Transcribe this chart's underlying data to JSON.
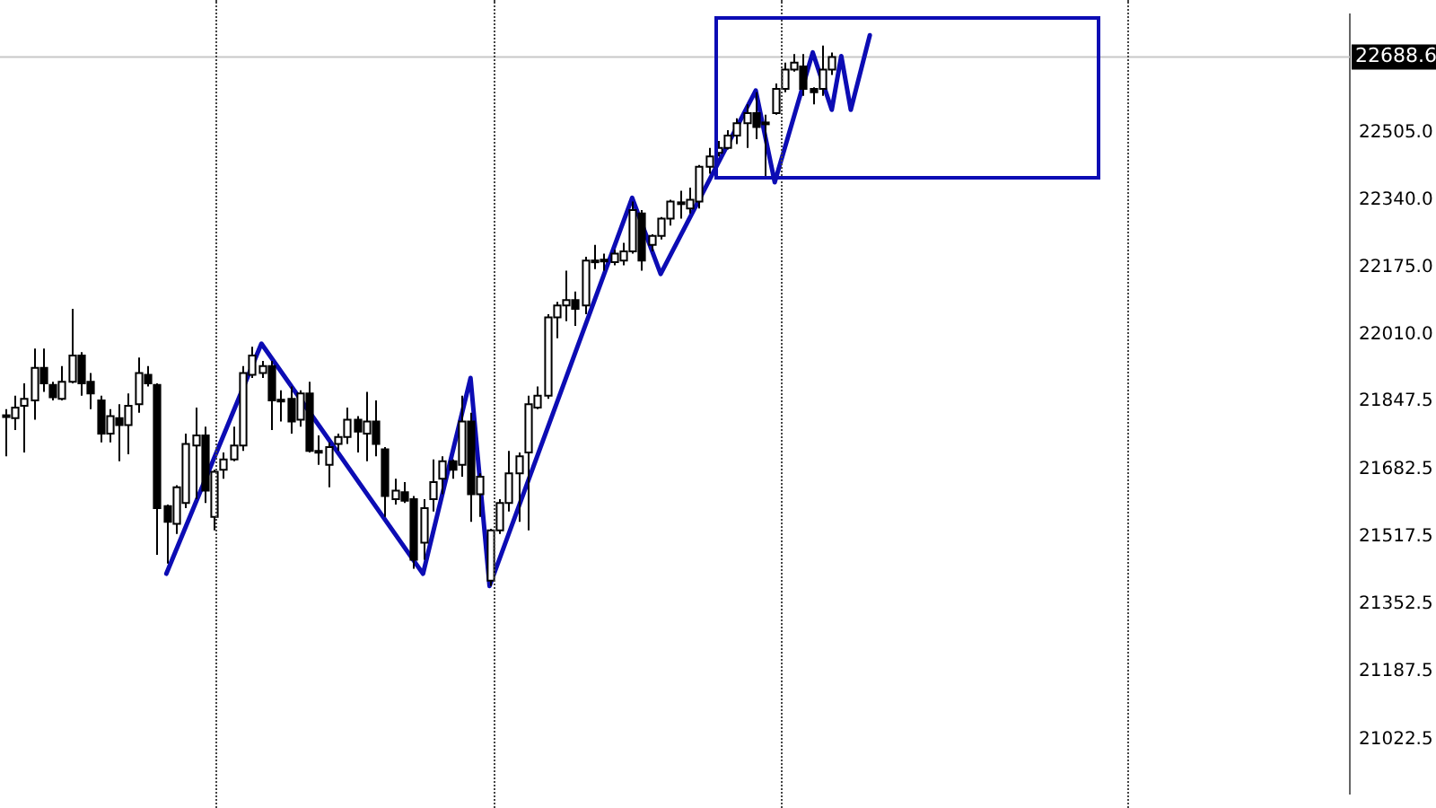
{
  "chart_data": {
    "type": "candlestick",
    "categories": [
      null,
      null,
      null,
      null,
      null,
      null,
      null,
      null,
      null,
      null,
      null,
      null,
      null,
      null,
      null,
      null,
      null,
      null,
      null,
      null,
      null,
      null,
      null,
      null,
      null,
      null,
      null,
      null,
      null,
      null,
      null,
      null,
      null,
      null,
      null,
      null,
      null,
      null,
      null,
      null,
      null,
      null,
      null,
      null,
      null,
      null,
      null,
      null,
      null,
      null,
      null,
      null,
      null,
      null,
      null,
      null,
      null,
      null,
      null,
      null,
      null,
      null,
      null,
      null,
      null,
      null,
      null,
      null,
      null,
      null,
      null,
      null,
      null,
      null,
      null,
      null,
      null,
      null,
      null,
      null,
      null,
      null,
      null,
      null,
      null,
      null,
      null,
      null,
      null,
      null,
      null,
      null,
      null,
      null,
      null,
      null,
      null,
      null,
      null,
      null,
      null,
      null,
      null,
      null,
      null,
      null,
      null,
      null,
      null,
      null,
      null,
      null,
      null,
      null,
      null,
      null,
      null,
      null,
      null,
      null,
      null,
      null,
      null,
      null,
      null,
      null,
      null,
      null,
      null,
      null,
      null,
      null,
      null,
      null,
      null,
      null,
      null,
      null,
      null,
      null,
      null,
      null
    ],
    "ohlc": [
      [
        21812,
        21829,
        21714,
        21814
      ],
      [
        21807,
        21862,
        21778,
        21833
      ],
      [
        21837,
        21892,
        21723,
        21854
      ],
      [
        21850,
        21977,
        21803,
        21930
      ],
      [
        21930,
        21977,
        21871,
        21892
      ],
      [
        21888,
        21896,
        21850,
        21858
      ],
      [
        21854,
        21934,
        21850,
        21896
      ],
      [
        21896,
        22074,
        21892,
        21960
      ],
      [
        21960,
        21968,
        21862,
        21892
      ],
      [
        21896,
        21917,
        21829,
        21867
      ],
      [
        21850,
        21862,
        21748,
        21769
      ],
      [
        21769,
        21829,
        21748,
        21812
      ],
      [
        21807,
        21841,
        21702,
        21790
      ],
      [
        21790,
        21867,
        21719,
        21837
      ],
      [
        21841,
        21955,
        21820,
        21917
      ],
      [
        21913,
        21934,
        21884,
        21892
      ],
      [
        21888,
        21892,
        21473,
        21587
      ],
      [
        21592,
        21596,
        21452,
        21554
      ],
      [
        21549,
        21643,
        21524,
        21638
      ],
      [
        21600,
        21769,
        21587,
        21744
      ],
      [
        21740,
        21833,
        21609,
        21765
      ],
      [
        21765,
        21786,
        21600,
        21630
      ],
      [
        21566,
        21681,
        21533,
        21676
      ],
      [
        21681,
        21723,
        21659,
        21706
      ],
      [
        21706,
        21786,
        21702,
        21740
      ],
      [
        21740,
        21934,
        21727,
        21917
      ],
      [
        21913,
        21981,
        21905,
        21960
      ],
      [
        21917,
        21947,
        21905,
        21934
      ],
      [
        21934,
        21947,
        21778,
        21850
      ],
      [
        21850,
        21875,
        21799,
        21852
      ],
      [
        21854,
        21884,
        21769,
        21799
      ],
      [
        21803,
        21875,
        21786,
        21867
      ],
      [
        21867,
        21896,
        21723,
        21727
      ],
      [
        21727,
        21765,
        21693,
        21723
      ],
      [
        21693,
        21748,
        21638,
        21736
      ],
      [
        21744,
        21769,
        21727,
        21761
      ],
      [
        21761,
        21833,
        21744,
        21803
      ],
      [
        21803,
        21812,
        21723,
        21774
      ],
      [
        21769,
        21871,
        21702,
        21799
      ],
      [
        21799,
        21850,
        21714,
        21744
      ],
      [
        21731,
        21736,
        21566,
        21617
      ],
      [
        21609,
        21659,
        21596,
        21630
      ],
      [
        21626,
        21651,
        21600,
        21605
      ],
      [
        21609,
        21617,
        21439,
        21461
      ],
      [
        21503,
        21609,
        21461,
        21587
      ],
      [
        21609,
        21706,
        21579,
        21651
      ],
      [
        21659,
        21714,
        21621,
        21702
      ],
      [
        21702,
        21706,
        21659,
        21681
      ],
      [
        21693,
        21862,
        21664,
        21799
      ],
      [
        21799,
        21820,
        21554,
        21621
      ],
      [
        21621,
        21672,
        21566,
        21664
      ],
      [
        21410,
        21537,
        21397,
        21533
      ],
      [
        21533,
        21609,
        21524,
        21600
      ],
      [
        21600,
        21727,
        21579,
        21672
      ],
      [
        21672,
        21723,
        21554,
        21714
      ],
      [
        21723,
        21862,
        21533,
        21841
      ],
      [
        21833,
        21884,
        21829,
        21862
      ],
      [
        21862,
        22061,
        21854,
        22053
      ],
      [
        22053,
        22091,
        22002,
        22082
      ],
      [
        22082,
        22167,
        22044,
        22095
      ],
      [
        22095,
        22116,
        22032,
        22074
      ],
      [
        22082,
        22201,
        22061,
        22192
      ],
      [
        22192,
        22230,
        22171,
        22188
      ],
      [
        22192,
        22209,
        22167,
        22194
      ],
      [
        22188,
        22218,
        22180,
        22209
      ],
      [
        22192,
        22235,
        22180,
        22214
      ],
      [
        22214,
        22336,
        22209,
        22315
      ],
      [
        22307,
        22315,
        22167,
        22192
      ],
      [
        22230,
        22256,
        22214,
        22252
      ],
      [
        22252,
        22298,
        22243,
        22294
      ],
      [
        22294,
        22340,
        22277,
        22336
      ],
      [
        22332,
        22362,
        22294,
        22334
      ],
      [
        22319,
        22370,
        22307,
        22340
      ],
      [
        22336,
        22425,
        22319,
        22421
      ],
      [
        22421,
        22467,
        22404,
        22446
      ],
      [
        22455,
        22484,
        22446,
        22467
      ],
      [
        22467,
        22510,
        22463,
        22497
      ],
      [
        22497,
        22539,
        22476,
        22527
      ],
      [
        22527,
        22573,
        22467,
        22552
      ],
      [
        22552,
        22603,
        22488,
        22518
      ],
      [
        22527,
        22548,
        22391,
        22529
      ],
      [
        22552,
        22624,
        22548,
        22611
      ],
      [
        22611,
        22675,
        22603,
        22658
      ],
      [
        22658,
        22696,
        22653,
        22675
      ],
      [
        22666,
        22696,
        22594,
        22611
      ],
      [
        22611,
        22615,
        22573,
        22603
      ],
      [
        22611,
        22717,
        22594,
        22658
      ],
      [
        22658,
        22700,
        22645,
        22688.6
      ],
      null,
      null,
      null,
      null,
      null,
      null,
      null,
      null,
      null,
      null,
      null,
      null,
      null,
      null,
      null,
      null,
      null,
      null,
      null,
      null,
      null,
      null,
      null,
      null,
      null,
      null,
      null,
      null,
      null,
      null,
      null,
      null,
      null,
      null,
      null,
      null,
      null,
      null,
      null,
      null,
      null,
      null,
      null,
      null,
      null,
      null,
      null,
      null,
      null,
      null,
      null,
      null,
      null,
      null
    ],
    "series": [
      {
        "type": "line",
        "color": "#0c0cb4",
        "values": [
          null,
          null,
          null,
          null,
          null,
          null,
          null,
          null,
          null,
          null,
          null,
          null,
          null,
          null,
          null,
          null,
          null,
          21427,
          null,
          null,
          null,
          null,
          null,
          null,
          null,
          null,
          null,
          21989,
          null,
          null,
          null,
          null,
          null,
          null,
          null,
          null,
          null,
          null,
          null,
          null,
          null,
          null,
          null,
          null,
          21427,
          null,
          null,
          null,
          null,
          21905,
          null,
          21397,
          null,
          null,
          null,
          null,
          null,
          null,
          null,
          null,
          null,
          null,
          null,
          null,
          null,
          null,
          22345,
          null,
          null,
          22159,
          null,
          null,
          null,
          null,
          null,
          null,
          null,
          null,
          null,
          22607,
          null,
          22383,
          null,
          null,
          null,
          22700,
          null,
          22560,
          22691,
          22560,
          null,
          22742,
          null,
          null,
          null,
          null,
          null,
          null,
          null,
          null,
          null,
          null,
          null,
          null,
          null,
          null,
          null,
          null,
          null,
          null,
          null,
          null,
          null,
          null,
          null,
          null,
          null,
          null,
          null,
          null,
          null,
          null,
          null,
          null,
          null,
          null,
          null,
          null,
          null,
          null,
          null,
          null,
          null,
          null,
          null,
          null,
          null,
          null,
          null,
          null,
          null,
          null
        ]
      }
    ],
    "ylim": [
      20890,
      22793
    ],
    "yticks": [
      {
        "value": 21022.5,
        "label": "21022.5"
      },
      {
        "value": 21187.5,
        "label": "21187.5"
      },
      {
        "value": 21352.5,
        "label": "21352.5"
      },
      {
        "value": 21517.5,
        "label": "21517.5"
      },
      {
        "value": 21682.5,
        "label": "21682.5"
      },
      {
        "value": 21847.5,
        "label": "21847.5"
      },
      {
        "value": 22010,
        "label": "22010.0"
      },
      {
        "value": 22175,
        "label": "22175.0"
      },
      {
        "value": 22340,
        "label": "22340.0"
      },
      {
        "value": 22505,
        "label": "22505.0"
      }
    ],
    "tick_labels": "y",
    "ref_lines": [
      {
        "axis": "y",
        "value": 22688.6,
        "label": "22688.6",
        "color": "#c8c8c8"
      }
    ]
  }
}
